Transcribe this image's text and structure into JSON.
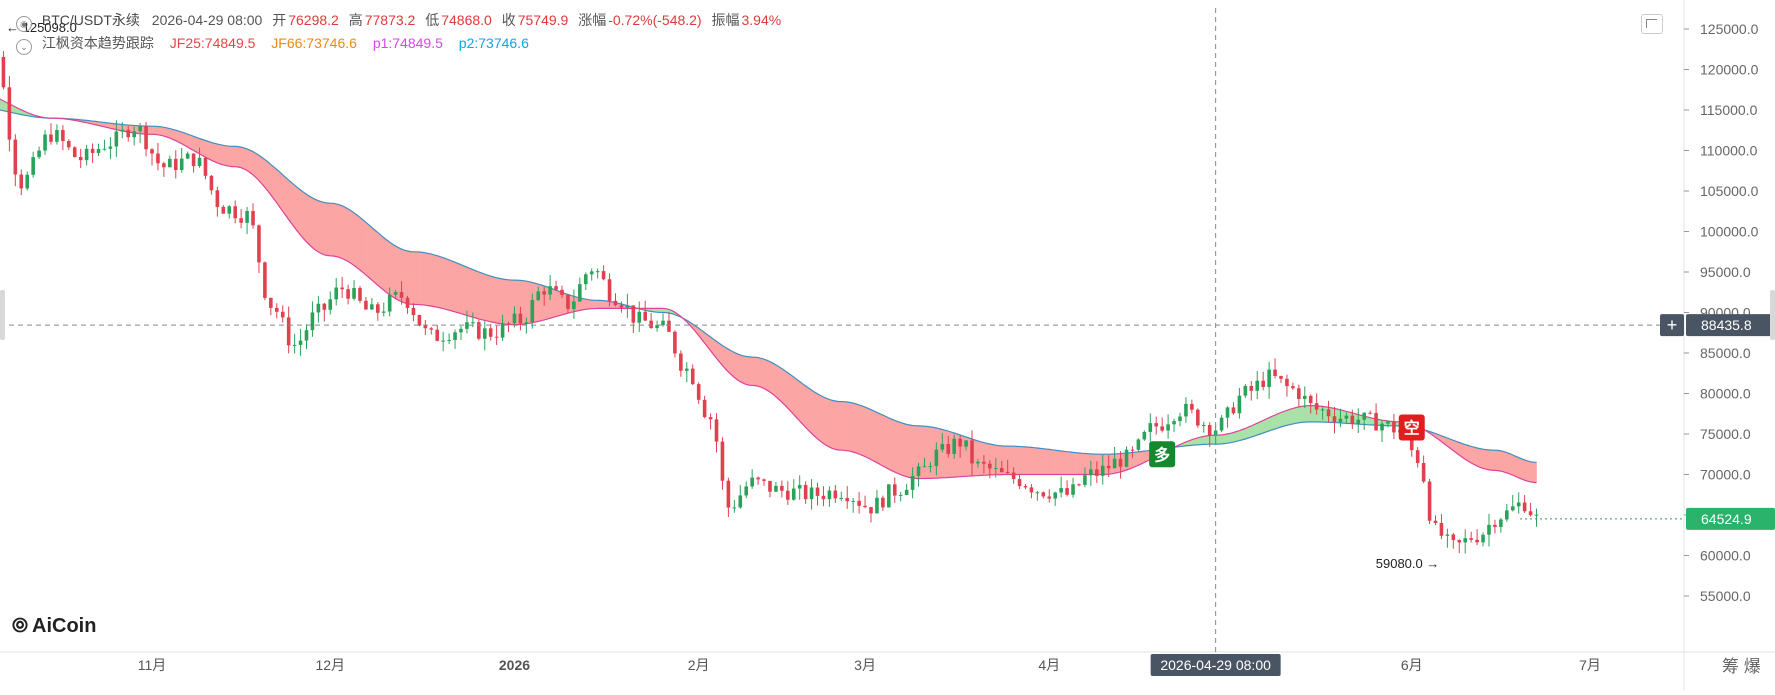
{
  "header": {
    "symbol": "BTC/USDT永续",
    "datetime": "2026-04-29 08:00",
    "open_label": "开",
    "open": "76298.2",
    "high_label": "高",
    "high": "77873.2",
    "low_label": "低",
    "low": "74868.0",
    "close_label": "收",
    "close": "75749.9",
    "change_label": "涨幅",
    "change": "-0.72%(-548.2)",
    "amplitude_label": "振幅",
    "amplitude": "3.94%"
  },
  "indicator": {
    "name": "江枫资本趋势跟踪",
    "jf25": "JF25:74849.5",
    "jf66": "JF66:73746.6",
    "p1": "p1:74849.5",
    "p2": "p2:73746.6"
  },
  "colors": {
    "up": "#2aa35a",
    "down": "#e0414f",
    "jf25": "#e0419a",
    "jf66": "#3f8fc0",
    "band_bear": "#fca5a5",
    "band_bull": "#a8e2a8",
    "jf25_text": "#ef4444",
    "jf66_text": "#ea8a10",
    "p1_text": "#d946ef",
    "p2_text": "#0ea5e9"
  },
  "branding": {
    "logo": "AiCoin"
  },
  "crosshair": {
    "time_label": "2026-04-29 08:00",
    "price_label": "88435.8"
  },
  "last_price_label": "64524.9",
  "bottom_right_label": "筹 爆",
  "chart_data": {
    "type": "candlestick",
    "x_axis_labels": [
      {
        "date": "2025-11-01",
        "text": "11月"
      },
      {
        "date": "2025-12-01",
        "text": "12月"
      },
      {
        "date": "2026-01-01",
        "text": "2026"
      },
      {
        "date": "2026-02-01",
        "text": "2月"
      },
      {
        "date": "2026-03-01",
        "text": "3月"
      },
      {
        "date": "2026-04-01",
        "text": "4月"
      },
      {
        "date": "2026-06-01",
        "text": "6月"
      },
      {
        "date": "2026-07-01",
        "text": "7月"
      }
    ],
    "y_ticks": [
      "125000.0",
      "120000.0",
      "115000.0",
      "110000.0",
      "105000.0",
      "100000.0",
      "95000.0",
      "90000.0",
      "85000.0",
      "80000.0",
      "75000.0",
      "70000.0",
      "65000.0",
      "60000.0",
      "55000.0"
    ],
    "ylim": [
      52000,
      127000
    ],
    "xlim": [
      "2025-10-01",
      "2026-07-20"
    ],
    "max_marker": {
      "value": 125098.0,
      "text": "125098.0"
    },
    "min_marker": {
      "value": 59080.0,
      "text": "59080.0"
    },
    "signals": [
      {
        "date": "2026-04-20",
        "value": 72500,
        "text": "多",
        "color": "#14892e"
      },
      {
        "date": "2026-06-01",
        "value": 75800,
        "text": "空",
        "color": "#e11d1d"
      }
    ],
    "anchors": [
      [
        "2025-10-01",
        121000
      ],
      [
        "2025-10-05",
        124000
      ],
      [
        "2025-10-10",
        106000
      ],
      [
        "2025-10-15",
        112000
      ],
      [
        "2025-10-20",
        109000
      ],
      [
        "2025-10-25",
        111000
      ],
      [
        "2025-10-29",
        113000
      ],
      [
        "2025-11-03",
        108000
      ],
      [
        "2025-11-08",
        109000
      ],
      [
        "2025-11-13",
        103000
      ],
      [
        "2025-11-17",
        102000
      ],
      [
        "2025-11-21",
        91000
      ],
      [
        "2025-11-25",
        86000
      ],
      [
        "2025-11-29",
        90000
      ],
      [
        "2025-12-03",
        93000
      ],
      [
        "2025-12-08",
        90000
      ],
      [
        "2025-12-13",
        92000
      ],
      [
        "2025-12-18",
        87000
      ],
      [
        "2025-12-23",
        88000
      ],
      [
        "2025-12-28",
        87500
      ],
      [
        "2026-01-02",
        89000
      ],
      [
        "2026-01-06",
        93000
      ],
      [
        "2026-01-10",
        91000
      ],
      [
        "2026-01-14",
        95500
      ],
      [
        "2026-01-18",
        92000
      ],
      [
        "2026-01-22",
        89000
      ],
      [
        "2026-01-26",
        88000
      ],
      [
        "2026-01-30",
        83000
      ],
      [
        "2026-02-03",
        77000
      ],
      [
        "2026-02-06",
        66000
      ],
      [
        "2026-02-10",
        69000
      ],
      [
        "2026-02-15",
        68000
      ],
      [
        "2026-02-20",
        67500
      ],
      [
        "2026-02-25",
        68000
      ],
      [
        "2026-03-02",
        66000
      ],
      [
        "2026-03-06",
        68000
      ],
      [
        "2026-03-10",
        70000
      ],
      [
        "2026-03-13",
        72500
      ],
      [
        "2026-03-17",
        74000
      ],
      [
        "2026-03-20",
        71000
      ],
      [
        "2026-03-26",
        69500
      ],
      [
        "2026-03-31",
        68000
      ],
      [
        "2026-04-04",
        67500
      ],
      [
        "2026-04-08",
        70000
      ],
      [
        "2026-04-14",
        72000
      ],
      [
        "2026-04-19",
        76000
      ],
      [
        "2026-04-23",
        78000
      ],
      [
        "2026-04-29",
        75750
      ],
      [
        "2026-05-04",
        80000
      ],
      [
        "2026-05-08",
        82000
      ],
      [
        "2026-05-12",
        80500
      ],
      [
        "2026-05-16",
        78000
      ],
      [
        "2026-05-21",
        77000
      ],
      [
        "2026-05-26",
        76500
      ],
      [
        "2026-05-30",
        75500
      ],
      [
        "2026-06-02",
        72000
      ],
      [
        "2026-06-05",
        63000
      ],
      [
        "2026-06-08",
        61000
      ],
      [
        "2026-06-12",
        62500
      ],
      [
        "2026-06-16",
        65000
      ],
      [
        "2026-06-20",
        66500
      ],
      [
        "2026-06-22",
        64525
      ]
    ],
    "jf25_anchors": [
      [
        "2025-10-01",
        117500
      ],
      [
        "2025-10-15",
        114000
      ],
      [
        "2025-11-01",
        112000
      ],
      [
        "2025-11-15",
        108000
      ],
      [
        "2025-12-01",
        97000
      ],
      [
        "2025-12-15",
        91000
      ],
      [
        "2026-01-01",
        88500
      ],
      [
        "2026-01-15",
        90500
      ],
      [
        "2026-01-26",
        90500
      ],
      [
        "2026-02-10",
        81000
      ],
      [
        "2026-02-25",
        73000
      ],
      [
        "2026-03-10",
        69500
      ],
      [
        "2026-03-25",
        70000
      ],
      [
        "2026-04-10",
        70000
      ],
      [
        "2026-04-29",
        74850
      ],
      [
        "2026-05-15",
        78500
      ],
      [
        "2026-05-30",
        76500
      ],
      [
        "2026-06-15",
        70500
      ],
      [
        "2026-06-22",
        69000
      ]
    ],
    "jf66_anchors": [
      [
        "2025-10-01",
        115500
      ],
      [
        "2025-10-15",
        114000
      ],
      [
        "2025-11-01",
        113000
      ],
      [
        "2025-11-15",
        110500
      ],
      [
        "2025-12-01",
        103500
      ],
      [
        "2025-12-15",
        97500
      ],
      [
        "2026-01-01",
        94000
      ],
      [
        "2026-01-15",
        91500
      ],
      [
        "2026-01-26",
        90000
      ],
      [
        "2026-02-10",
        84500
      ],
      [
        "2026-02-25",
        79000
      ],
      [
        "2026-03-10",
        76000
      ],
      [
        "2026-03-25",
        73500
      ],
      [
        "2026-04-10",
        72500
      ],
      [
        "2026-04-29",
        73750
      ],
      [
        "2026-05-15",
        76500
      ],
      [
        "2026-05-30",
        76000
      ],
      [
        "2026-06-15",
        73000
      ],
      [
        "2026-06-22",
        71500
      ]
    ]
  }
}
